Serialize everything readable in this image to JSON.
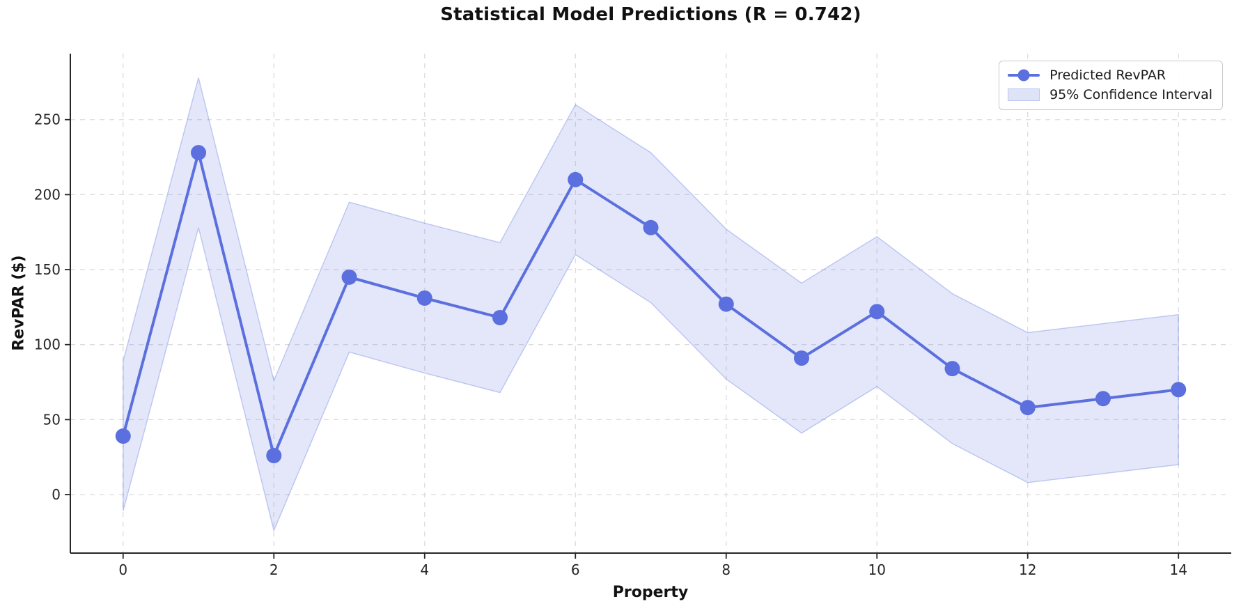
{
  "figure": {
    "title": "Statistical Model Predictions (R = 0.742)"
  },
  "chart_data": {
    "type": "line",
    "title": "Statistical Model Predictions (R = 0.742)",
    "xlabel": "Property",
    "ylabel": "RevPAR ($)",
    "x": [
      0,
      1,
      2,
      3,
      4,
      5,
      6,
      7,
      8,
      9,
      10,
      11,
      12,
      13,
      14
    ],
    "series": [
      {
        "name": "Predicted RevPAR",
        "values": [
          39,
          228,
          26,
          145,
          131,
          118,
          210,
          178,
          127,
          91,
          122,
          84,
          58,
          64,
          70
        ]
      }
    ],
    "confidence_interval": {
      "name": "95% Confidence Interval",
      "lower": [
        -11,
        178,
        -24,
        95,
        81,
        68,
        160,
        128,
        77,
        41,
        72,
        34,
        8,
        14,
        20
      ],
      "upper": [
        89,
        278,
        76,
        195,
        181,
        168,
        260,
        228,
        177,
        141,
        172,
        134,
        108,
        114,
        120
      ]
    },
    "x_ticks": [
      0,
      2,
      4,
      6,
      8,
      10,
      12,
      14
    ],
    "y_ticks": [
      0,
      50,
      100,
      150,
      200,
      250
    ],
    "xlim": [
      -0.7,
      14.7
    ],
    "ylim": [
      -39,
      294
    ],
    "grid": true,
    "legend_position": "upper right",
    "colors": {
      "line": "#5b6fde",
      "marker": "#5b6fde",
      "band_fill": "rgba(91,111,222,0.17)",
      "band_edge": "rgba(91,111,222,0.35)",
      "legend_patch_fill": "#dfe3f8",
      "legend_patch_edge": "#bcc6ee",
      "grid": "#dcdcdc",
      "spine": "#262626",
      "tick_text": "#262626"
    }
  },
  "legend": {
    "entries": [
      {
        "label": "Predicted RevPAR",
        "type": "line-marker"
      },
      {
        "label": "95% Confidence Interval",
        "type": "patch"
      }
    ]
  }
}
